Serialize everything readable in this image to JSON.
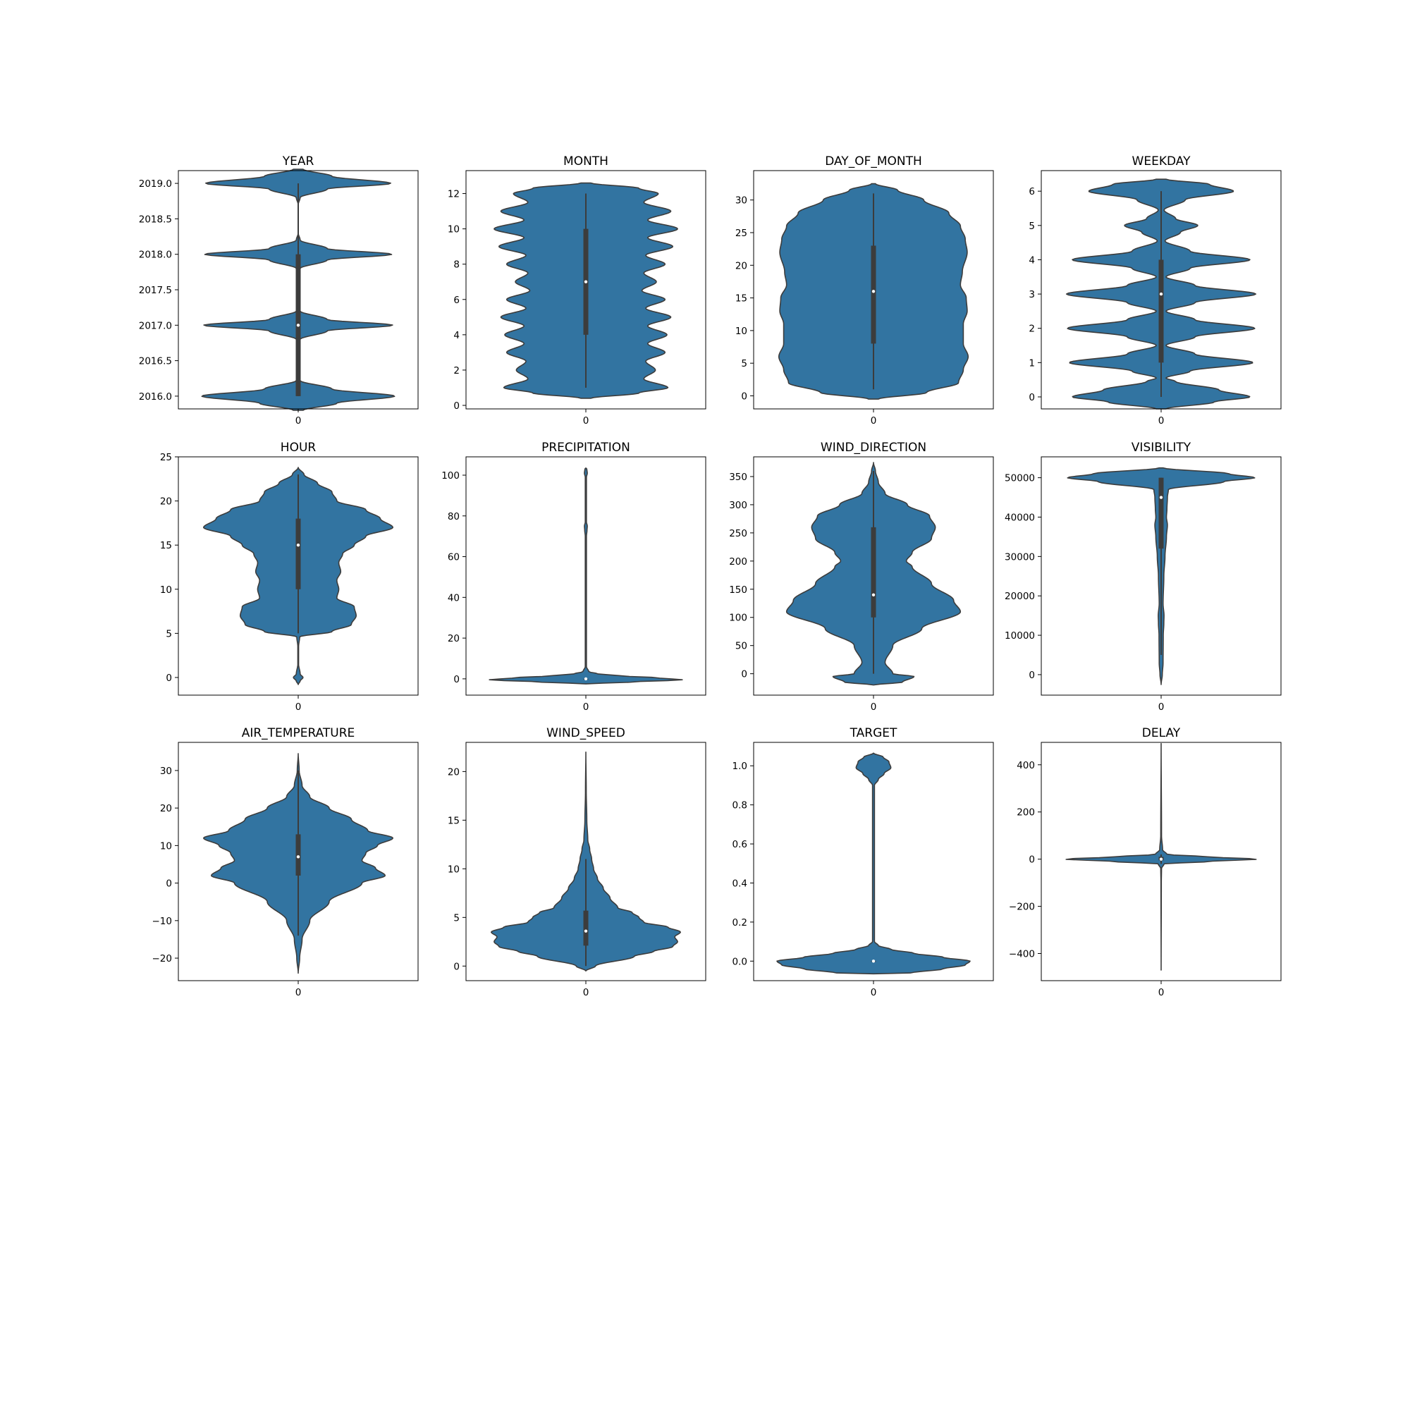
{
  "colors": {
    "violin_fill": "#3274a1",
    "violin_edge": "#3c3c3c",
    "box": "#3c3c3c",
    "median": "#ffffff"
  },
  "chart_data": [
    {
      "type": "violin",
      "title": "YEAR",
      "xtick": "0",
      "ylim": [
        2015.82,
        2019.18
      ],
      "yticks": [
        2016.0,
        2016.5,
        2017.0,
        2017.5,
        2018.0,
        2018.5,
        2019.0
      ],
      "decimals": 1,
      "median": 2017.0,
      "q1": 2016.0,
      "q3": 2018.0,
      "whisker_min": 2016.0,
      "whisker_max": 2019.0,
      "violin_min": 2015.8,
      "violin_max": 2019.2,
      "density": [
        [
          2015.8,
          0.05
        ],
        [
          2015.9,
          0.4
        ],
        [
          2016.0,
          1.0
        ],
        [
          2016.1,
          0.35
        ],
        [
          2016.22,
          0.02
        ],
        [
          2016.3,
          0.0
        ],
        [
          2016.7,
          0.0
        ],
        [
          2016.8,
          0.02
        ],
        [
          2016.92,
          0.3
        ],
        [
          2017.0,
          0.98
        ],
        [
          2017.08,
          0.3
        ],
        [
          2017.2,
          0.02
        ],
        [
          2017.3,
          0.0
        ],
        [
          2017.7,
          0.0
        ],
        [
          2017.8,
          0.02
        ],
        [
          2017.92,
          0.3
        ],
        [
          2018.0,
          0.97
        ],
        [
          2018.08,
          0.3
        ],
        [
          2018.2,
          0.02
        ],
        [
          2018.3,
          0.0
        ],
        [
          2018.7,
          0.0
        ],
        [
          2018.8,
          0.02
        ],
        [
          2018.92,
          0.3
        ],
        [
          2019.0,
          0.96
        ],
        [
          2019.1,
          0.35
        ],
        [
          2019.2,
          0.05
        ]
      ]
    },
    {
      "type": "violin",
      "title": "MONTH",
      "xtick": "0",
      "ylim": [
        -0.2,
        13.3
      ],
      "yticks": [
        0,
        2,
        4,
        6,
        8,
        10,
        12
      ],
      "decimals": 0,
      "median": 7.0,
      "q1": 4.0,
      "q3": 10.0,
      "whisker_min": 1.0,
      "whisker_max": 12.0,
      "violin_min": 0.4,
      "violin_max": 12.6,
      "density": [
        [
          0.4,
          0.05
        ],
        [
          0.7,
          0.55
        ],
        [
          1.0,
          0.85
        ],
        [
          1.5,
          0.6
        ],
        [
          2.0,
          0.72
        ],
        [
          2.5,
          0.62
        ],
        [
          3.0,
          0.82
        ],
        [
          3.5,
          0.64
        ],
        [
          4.0,
          0.84
        ],
        [
          4.5,
          0.64
        ],
        [
          5.0,
          0.88
        ],
        [
          5.5,
          0.62
        ],
        [
          6.0,
          0.82
        ],
        [
          6.5,
          0.58
        ],
        [
          7.0,
          0.73
        ],
        [
          7.5,
          0.6
        ],
        [
          8.0,
          0.82
        ],
        [
          8.5,
          0.62
        ],
        [
          9.0,
          0.9
        ],
        [
          9.5,
          0.64
        ],
        [
          10.0,
          0.95
        ],
        [
          10.5,
          0.64
        ],
        [
          11.0,
          0.88
        ],
        [
          11.5,
          0.6
        ],
        [
          12.0,
          0.75
        ],
        [
          12.3,
          0.55
        ],
        [
          12.6,
          0.05
        ]
      ]
    },
    {
      "type": "violin",
      "title": "DAY_OF_MONTH",
      "xtick": "0",
      "ylim": [
        -2,
        34.5
      ],
      "yticks": [
        0,
        5,
        10,
        15,
        20,
        25,
        30
      ],
      "decimals": 0,
      "median": 16.0,
      "q1": 8.0,
      "q3": 23.0,
      "whisker_min": 1.0,
      "whisker_max": 31.0,
      "violin_min": -0.5,
      "violin_max": 32.5,
      "density": [
        [
          -0.5,
          0.05
        ],
        [
          0.5,
          0.55
        ],
        [
          2,
          0.88
        ],
        [
          4,
          0.93
        ],
        [
          6,
          0.98
        ],
        [
          8,
          0.93
        ],
        [
          11,
          0.93
        ],
        [
          13,
          0.97
        ],
        [
          15,
          0.96
        ],
        [
          17,
          0.9
        ],
        [
          19,
          0.92
        ],
        [
          22,
          0.97
        ],
        [
          24,
          0.95
        ],
        [
          26,
          0.9
        ],
        [
          28,
          0.78
        ],
        [
          30,
          0.52
        ],
        [
          31.5,
          0.25
        ],
        [
          32.5,
          0.02
        ]
      ]
    },
    {
      "type": "violin",
      "title": "WEEKDAY",
      "xtick": "0",
      "ylim": [
        -0.35,
        6.6
      ],
      "yticks": [
        0,
        1,
        2,
        3,
        4,
        5,
        6
      ],
      "decimals": 0,
      "median": 3.0,
      "q1": 1.0,
      "q3": 4.0,
      "whisker_min": 0.0,
      "whisker_max": 6.0,
      "violin_min": -0.35,
      "violin_max": 6.35,
      "density": [
        [
          -0.35,
          0.05
        ],
        [
          -0.15,
          0.55
        ],
        [
          0.0,
          0.92
        ],
        [
          0.2,
          0.6
        ],
        [
          0.45,
          0.15
        ],
        [
          0.55,
          0.05
        ],
        [
          0.75,
          0.3
        ],
        [
          1.0,
          0.95
        ],
        [
          1.25,
          0.35
        ],
        [
          1.5,
          0.05
        ],
        [
          1.75,
          0.35
        ],
        [
          2.0,
          0.97
        ],
        [
          2.25,
          0.35
        ],
        [
          2.5,
          0.05
        ],
        [
          2.75,
          0.35
        ],
        [
          3.0,
          0.98
        ],
        [
          3.25,
          0.35
        ],
        [
          3.5,
          0.05
        ],
        [
          3.75,
          0.3
        ],
        [
          4.0,
          0.92
        ],
        [
          4.25,
          0.3
        ],
        [
          4.55,
          0.04
        ],
        [
          4.8,
          0.2
        ],
        [
          5.0,
          0.38
        ],
        [
          5.2,
          0.15
        ],
        [
          5.45,
          0.03
        ],
        [
          5.75,
          0.25
        ],
        [
          6.0,
          0.75
        ],
        [
          6.2,
          0.5
        ],
        [
          6.35,
          0.05
        ]
      ]
    },
    {
      "type": "violin",
      "title": "HOUR",
      "xtick": "0",
      "ylim": [
        -2,
        25
      ],
      "yticks": [
        0,
        5,
        10,
        15,
        20,
        25
      ],
      "decimals": 0,
      "median": 15.0,
      "q1": 10.0,
      "q3": 18.0,
      "whisker_min": 5.0,
      "whisker_max": 23.0,
      "violin_min": -0.8,
      "violin_max": 23.8,
      "density": [
        [
          -0.8,
          0.0
        ],
        [
          -0.4,
          0.02
        ],
        [
          0.0,
          0.05
        ],
        [
          0.4,
          0.02
        ],
        [
          1.5,
          0.004
        ],
        [
          3.5,
          0.004
        ],
        [
          4.6,
          0.015
        ],
        [
          5.2,
          0.35
        ],
        [
          6.0,
          0.55
        ],
        [
          7.0,
          0.6
        ],
        [
          8.0,
          0.58
        ],
        [
          9.0,
          0.4
        ],
        [
          10.0,
          0.42
        ],
        [
          11.0,
          0.4
        ],
        [
          12.0,
          0.44
        ],
        [
          13.0,
          0.42
        ],
        [
          14.0,
          0.46
        ],
        [
          15.0,
          0.58
        ],
        [
          16.0,
          0.7
        ],
        [
          17.0,
          0.98
        ],
        [
          18.0,
          0.85
        ],
        [
          19.0,
          0.7
        ],
        [
          20.0,
          0.4
        ],
        [
          21.0,
          0.35
        ],
        [
          22.0,
          0.2
        ],
        [
          23.0,
          0.06
        ],
        [
          23.8,
          0.0
        ]
      ]
    },
    {
      "type": "violin",
      "title": "PRECIPITATION",
      "xtick": "0",
      "ylim": [
        -8,
        109
      ],
      "yticks": [
        0,
        20,
        40,
        60,
        80,
        100
      ],
      "decimals": 0,
      "median": 0.0,
      "q1": 0.0,
      "q3": 0.0,
      "whisker_min": 0.0,
      "whisker_max": 0.0,
      "violin_min": -2.5,
      "violin_max": 103.5,
      "density": [
        [
          -2.5,
          0.0
        ],
        [
          -1.5,
          0.5
        ],
        [
          -0.5,
          1.0
        ],
        [
          0.5,
          0.75
        ],
        [
          1.5,
          0.35
        ],
        [
          2.5,
          0.12
        ],
        [
          3.5,
          0.03
        ],
        [
          6,
          0.006
        ],
        [
          70,
          0.006
        ],
        [
          73,
          0.012
        ],
        [
          75,
          0.015
        ],
        [
          77,
          0.006
        ],
        [
          99,
          0.006
        ],
        [
          101,
          0.015
        ],
        [
          103,
          0.01
        ],
        [
          103.5,
          0.0
        ]
      ]
    },
    {
      "type": "violin",
      "title": "WIND_DIRECTION",
      "xtick": "0",
      "ylim": [
        -38,
        385
      ],
      "yticks": [
        0,
        50,
        100,
        150,
        200,
        250,
        300,
        350
      ],
      "decimals": 0,
      "median": 140,
      "q1": 100,
      "q3": 260,
      "whisker_min": 0,
      "whisker_max": 360,
      "violin_min": -20,
      "violin_max": 375,
      "density": [
        [
          -20,
          0.0
        ],
        [
          -15,
          0.3
        ],
        [
          -5,
          0.42
        ],
        [
          0,
          0.2
        ],
        [
          20,
          0.12
        ],
        [
          50,
          0.2
        ],
        [
          80,
          0.5
        ],
        [
          110,
          0.9
        ],
        [
          130,
          0.83
        ],
        [
          160,
          0.6
        ],
        [
          190,
          0.4
        ],
        [
          200,
          0.34
        ],
        [
          215,
          0.4
        ],
        [
          240,
          0.6
        ],
        [
          260,
          0.64
        ],
        [
          280,
          0.58
        ],
        [
          300,
          0.35
        ],
        [
          320,
          0.12
        ],
        [
          340,
          0.05
        ],
        [
          360,
          0.02
        ],
        [
          375,
          0.0
        ]
      ]
    },
    {
      "type": "violin",
      "title": "VISIBILITY",
      "xtick": "0",
      "ylim": [
        -5200,
        55300
      ],
      "yticks": [
        0,
        10000,
        20000,
        30000,
        40000,
        50000
      ],
      "decimals": 0,
      "median": 45000,
      "q1": 32000,
      "q3": 50000,
      "whisker_min": 5000,
      "whisker_max": 50000,
      "violin_min": -2500,
      "violin_max": 52500,
      "density": [
        [
          -2500,
          0.0
        ],
        [
          0,
          0.012
        ],
        [
          3000,
          0.02
        ],
        [
          10000,
          0.022
        ],
        [
          13000,
          0.028
        ],
        [
          15000,
          0.03
        ],
        [
          18000,
          0.02
        ],
        [
          25000,
          0.028
        ],
        [
          30000,
          0.04
        ],
        [
          35000,
          0.055
        ],
        [
          38000,
          0.065
        ],
        [
          40000,
          0.055
        ],
        [
          42000,
          0.06
        ],
        [
          45000,
          0.065
        ],
        [
          47000,
          0.075
        ],
        [
          49000,
          0.65
        ],
        [
          50000,
          0.97
        ],
        [
          51000,
          0.7
        ],
        [
          52500,
          0.02
        ]
      ]
    },
    {
      "type": "violin",
      "title": "AIR_TEMPERATURE",
      "xtick": "0",
      "ylim": [
        -26,
        37.5
      ],
      "yticks": [
        -20,
        -10,
        0,
        10,
        20,
        30
      ],
      "decimals": 0,
      "median": 7,
      "q1": 2,
      "q3": 13,
      "whisker_min": -14,
      "whisker_max": 30,
      "violin_min": -24,
      "violin_max": 34.5,
      "density": [
        [
          -24,
          0.0
        ],
        [
          -20,
          0.015
        ],
        [
          -15,
          0.04
        ],
        [
          -10,
          0.12
        ],
        [
          -5,
          0.32
        ],
        [
          0,
          0.66
        ],
        [
          2,
          0.9
        ],
        [
          4,
          0.8
        ],
        [
          6,
          0.66
        ],
        [
          8,
          0.7
        ],
        [
          10,
          0.82
        ],
        [
          12,
          0.98
        ],
        [
          14,
          0.72
        ],
        [
          17,
          0.55
        ],
        [
          20,
          0.32
        ],
        [
          23,
          0.12
        ],
        [
          26,
          0.04
        ],
        [
          30,
          0.01
        ],
        [
          34.5,
          0.0
        ]
      ]
    },
    {
      "type": "violin",
      "title": "WIND_SPEED",
      "xtick": "0",
      "ylim": [
        -1.5,
        23
      ],
      "yticks": [
        0,
        5,
        10,
        15,
        20
      ],
      "decimals": 0,
      "median": 3.6,
      "q1": 2.1,
      "q3": 5.7,
      "whisker_min": 0.0,
      "whisker_max": 11.0,
      "violin_min": -0.5,
      "violin_max": 22.0,
      "density": [
        [
          -0.5,
          0.0
        ],
        [
          0,
          0.1
        ],
        [
          1,
          0.5
        ],
        [
          1.5,
          0.7
        ],
        [
          2,
          0.9
        ],
        [
          2.5,
          0.95
        ],
        [
          3,
          0.92
        ],
        [
          3.5,
          0.98
        ],
        [
          4,
          0.85
        ],
        [
          4.5,
          0.6
        ],
        [
          5,
          0.55
        ],
        [
          5.5,
          0.48
        ],
        [
          6,
          0.33
        ],
        [
          7,
          0.25
        ],
        [
          8,
          0.18
        ],
        [
          9,
          0.12
        ],
        [
          10,
          0.08
        ],
        [
          11,
          0.06
        ],
        [
          12,
          0.04
        ],
        [
          13,
          0.02
        ],
        [
          15,
          0.01
        ],
        [
          18,
          0.004
        ],
        [
          22,
          0.0
        ]
      ]
    },
    {
      "type": "violin",
      "title": "TARGET",
      "xtick": "0",
      "ylim": [
        -0.1,
        1.12
      ],
      "yticks": [
        0.0,
        0.2,
        0.4,
        0.6,
        0.8,
        1.0
      ],
      "decimals": 1,
      "median": 0.0,
      "q1": 0.0,
      "q3": 0.0,
      "whisker_min": 0.0,
      "whisker_max": 0.0,
      "violin_min": -0.065,
      "violin_max": 1.065,
      "density": [
        [
          -0.065,
          0.0
        ],
        [
          -0.06,
          0.4
        ],
        [
          -0.04,
          0.72
        ],
        [
          -0.02,
          0.95
        ],
        [
          0.0,
          1.0
        ],
        [
          0.02,
          0.72
        ],
        [
          0.04,
          0.42
        ],
        [
          0.06,
          0.18
        ],
        [
          0.08,
          0.05
        ],
        [
          0.1,
          0.01
        ],
        [
          0.9,
          0.01
        ],
        [
          0.93,
          0.05
        ],
        [
          0.96,
          0.11
        ],
        [
          0.99,
          0.18
        ],
        [
          1.02,
          0.16
        ],
        [
          1.045,
          0.1
        ],
        [
          1.065,
          0.0
        ]
      ]
    },
    {
      "type": "violin",
      "title": "DELAY",
      "xtick": "0",
      "ylim": [
        -515,
        495
      ],
      "yticks": [
        -400,
        -200,
        0,
        200,
        400
      ],
      "decimals": 0,
      "median": 0,
      "q1": -5,
      "q3": 10,
      "whisker_min": -20,
      "whisker_max": 20,
      "violin_min": -470,
      "violin_max": 490,
      "density": [
        [
          -470,
          0.0
        ],
        [
          -100,
          0.002
        ],
        [
          -40,
          0.004
        ],
        [
          -20,
          0.03
        ],
        [
          -10,
          0.5
        ],
        [
          0,
          1.0
        ],
        [
          10,
          0.48
        ],
        [
          20,
          0.06
        ],
        [
          40,
          0.015
        ],
        [
          100,
          0.004
        ],
        [
          490,
          0.0
        ]
      ]
    }
  ]
}
